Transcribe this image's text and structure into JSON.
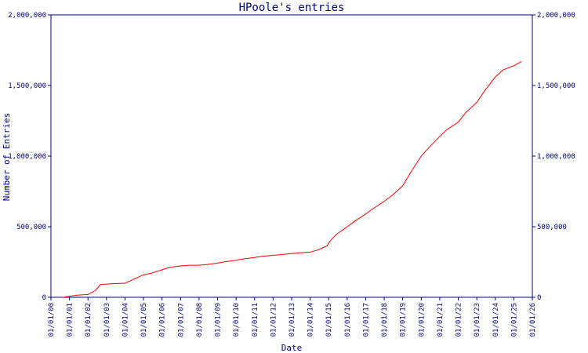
{
  "chart_data": {
    "type": "line",
    "title": "HPoole's entries",
    "xlabel": "Date",
    "ylabel": "Number of Entries",
    "grid": false,
    "ylim": [
      0,
      2000000
    ],
    "xlim": [
      "2000-01-01",
      "2026-01-01"
    ],
    "x_ticks": [
      "01/01/00",
      "01/01/01",
      "01/01/02",
      "01/01/03",
      "01/01/04",
      "01/01/05",
      "01/01/06",
      "01/01/07",
      "01/01/08",
      "01/01/09",
      "01/01/10",
      "01/01/11",
      "01/01/12",
      "01/01/13",
      "01/01/14",
      "01/01/15",
      "01/01/16",
      "01/01/17",
      "01/01/18",
      "01/01/19",
      "01/01/20",
      "01/01/21",
      "01/01/22",
      "01/01/23",
      "01/01/24",
      "01/01/25",
      "01/01/26"
    ],
    "y_ticks": [
      {
        "value": 0,
        "label": "0"
      },
      {
        "value": 500000,
        "label": "500,000"
      },
      {
        "value": 1000000,
        "label": "1,000,000"
      },
      {
        "value": 1500000,
        "label": "1,500,000"
      },
      {
        "value": 2000000,
        "label": "2,000,000"
      }
    ],
    "colors": {
      "axis": "#00007f",
      "series": "#ff0000"
    },
    "series": [
      {
        "x": [
          "2000-09-01",
          "2001-01-01",
          "2001-06-01",
          "2002-01-01",
          "2002-06-01",
          "2002-09-01",
          "2002-11-01",
          "2003-06-01",
          "2004-01-01",
          "2004-05-01",
          "2004-09-01",
          "2005-01-01",
          "2005-06-01",
          "2006-01-01",
          "2006-06-01",
          "2007-01-01",
          "2007-06-01",
          "2008-01-01",
          "2008-06-01",
          "2009-01-01",
          "2009-06-01",
          "2010-01-01",
          "2010-06-01",
          "2011-01-01",
          "2011-06-01",
          "2012-01-01",
          "2012-06-01",
          "2013-01-01",
          "2013-06-01",
          "2014-01-01",
          "2014-06-01",
          "2014-12-01",
          "2015-02-01",
          "2015-06-01",
          "2016-01-01",
          "2016-06-01",
          "2017-01-01",
          "2017-06-01",
          "2018-01-01",
          "2018-06-01",
          "2019-01-01",
          "2019-06-01",
          "2020-01-01",
          "2020-06-01",
          "2021-01-01",
          "2021-06-01",
          "2022-01-01",
          "2022-06-01",
          "2023-01-01",
          "2023-06-01",
          "2024-01-01",
          "2024-06-01",
          "2025-01-01",
          "2025-06-01"
        ],
        "y": [
          0,
          8000,
          15000,
          20000,
          50000,
          90000,
          92000,
          97000,
          100000,
          120000,
          140000,
          160000,
          170000,
          195000,
          212000,
          222000,
          226000,
          228000,
          232000,
          242000,
          252000,
          262000,
          272000,
          282000,
          290000,
          298000,
          302000,
          310000,
          315000,
          320000,
          335000,
          365000,
          400000,
          445000,
          500000,
          540000,
          590000,
          630000,
          680000,
          720000,
          790000,
          880000,
          1000000,
          1060000,
          1140000,
          1190000,
          1240000,
          1310000,
          1380000,
          1460000,
          1560000,
          1610000,
          1640000,
          1670000
        ]
      }
    ]
  }
}
